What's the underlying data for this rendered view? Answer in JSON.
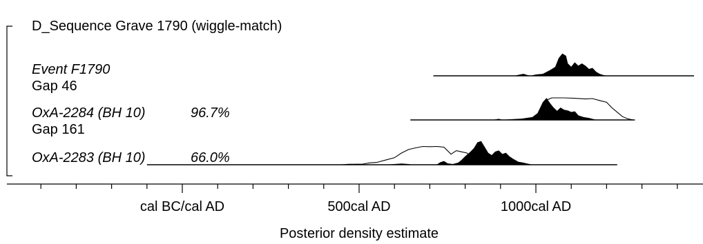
{
  "chart_data": {
    "type": "area",
    "title": "D_Sequence Grave 1790 (wiggle-match)",
    "xlabel": "Posterior density estimate",
    "xlim": [
      -400,
      1450
    ],
    "tick_labels": [
      {
        "value": 0,
        "label": "cal BC/cal AD"
      },
      {
        "value": 500,
        "label": "500cal AD"
      },
      {
        "value": 1000,
        "label": "1000cal AD"
      }
    ],
    "minor_tick_step": 100,
    "items": [
      {
        "id": "event",
        "name": "Event F1790",
        "italic": true,
        "agreement": "",
        "range": [
          710,
          1450
        ],
        "prior": [],
        "posterior": [
          [
            940,
            0
          ],
          [
            955,
            0.05
          ],
          [
            965,
            0.08
          ],
          [
            975,
            0.03
          ],
          [
            985,
            0
          ],
          [
            1000,
            0.05
          ],
          [
            1020,
            0.08
          ],
          [
            1040,
            0.25
          ],
          [
            1055,
            0.4
          ],
          [
            1065,
            0.8
          ],
          [
            1075,
            1.0
          ],
          [
            1085,
            0.9
          ],
          [
            1090,
            0.55
          ],
          [
            1100,
            0.4
          ],
          [
            1110,
            0.6
          ],
          [
            1120,
            0.45
          ],
          [
            1130,
            0.55
          ],
          [
            1140,
            0.45
          ],
          [
            1150,
            0.3
          ],
          [
            1160,
            0.35
          ],
          [
            1170,
            0.18
          ],
          [
            1180,
            0.08
          ],
          [
            1190,
            0.03
          ],
          [
            1200,
            0
          ]
        ]
      },
      {
        "id": "gap1",
        "name": "Gap 46",
        "italic": false
      },
      {
        "id": "oxa2284",
        "name": "OxA-2284 (BH 10)",
        "italic": true,
        "agreement": "96.7%",
        "range": [
          645,
          1280
        ],
        "prior": [
          [
            1000,
            0
          ],
          [
            1015,
            0.4
          ],
          [
            1030,
            0.9
          ],
          [
            1045,
            1.0
          ],
          [
            1080,
            1.0
          ],
          [
            1110,
            0.98
          ],
          [
            1140,
            0.95
          ],
          [
            1160,
            0.97
          ],
          [
            1180,
            0.88
          ],
          [
            1200,
            0.8
          ],
          [
            1215,
            0.55
          ],
          [
            1230,
            0.35
          ],
          [
            1245,
            0.15
          ],
          [
            1260,
            0.05
          ],
          [
            1275,
            0
          ]
        ],
        "posterior": [
          [
            880,
            0
          ],
          [
            895,
            0.04
          ],
          [
            905,
            0
          ],
          [
            925,
            0.02
          ],
          [
            960,
            0.05
          ],
          [
            990,
            0.12
          ],
          [
            1005,
            0.3
          ],
          [
            1020,
            0.8
          ],
          [
            1030,
            0.98
          ],
          [
            1040,
            0.75
          ],
          [
            1050,
            0.55
          ],
          [
            1060,
            0.4
          ],
          [
            1070,
            0.55
          ],
          [
            1080,
            0.45
          ],
          [
            1090,
            0.42
          ],
          [
            1100,
            0.35
          ],
          [
            1110,
            0.38
          ],
          [
            1120,
            0.2
          ],
          [
            1135,
            0.12
          ],
          [
            1150,
            0.08
          ],
          [
            1165,
            0.02
          ],
          [
            1175,
            0
          ]
        ]
      },
      {
        "id": "gap2",
        "name": "Gap 161",
        "italic": false
      },
      {
        "id": "oxa2283",
        "name": "OxA-2283 (BH 10)",
        "italic": true,
        "agreement": "66.0%",
        "range": [
          -100,
          1230
        ],
        "prior": [
          [
            450,
            0
          ],
          [
            470,
            0.02
          ],
          [
            510,
            0.03
          ],
          [
            530,
            0.08
          ],
          [
            550,
            0.1
          ],
          [
            575,
            0.2
          ],
          [
            600,
            0.3
          ],
          [
            620,
            0.5
          ],
          [
            640,
            0.65
          ],
          [
            660,
            0.72
          ],
          [
            680,
            0.78
          ],
          [
            700,
            0.77
          ],
          [
            720,
            0.78
          ],
          [
            740,
            0.75
          ],
          [
            760,
            0.45
          ],
          [
            775,
            0.6
          ],
          [
            790,
            0.55
          ],
          [
            805,
            0.5
          ],
          [
            815,
            0.35
          ],
          [
            830,
            0.15
          ],
          [
            845,
            0.08
          ],
          [
            860,
            0
          ]
        ],
        "posterior": [
          [
            580,
            0
          ],
          [
            600,
            0.02
          ],
          [
            620,
            0.04
          ],
          [
            640,
            0.02
          ],
          [
            650,
            0
          ],
          [
            720,
            0
          ],
          [
            730,
            0.1
          ],
          [
            740,
            0.15
          ],
          [
            750,
            0.05
          ],
          [
            765,
            0.02
          ],
          [
            780,
            0.08
          ],
          [
            790,
            0.2
          ],
          [
            800,
            0.35
          ],
          [
            815,
            0.55
          ],
          [
            825,
            0.7
          ],
          [
            835,
            0.95
          ],
          [
            845,
            1.0
          ],
          [
            855,
            0.75
          ],
          [
            865,
            0.5
          ],
          [
            875,
            0.4
          ],
          [
            885,
            0.55
          ],
          [
            895,
            0.6
          ],
          [
            905,
            0.45
          ],
          [
            915,
            0.5
          ],
          [
            925,
            0.35
          ],
          [
            935,
            0.25
          ],
          [
            950,
            0.12
          ],
          [
            965,
            0.08
          ],
          [
            975,
            0.04
          ],
          [
            990,
            0
          ]
        ]
      }
    ]
  }
}
